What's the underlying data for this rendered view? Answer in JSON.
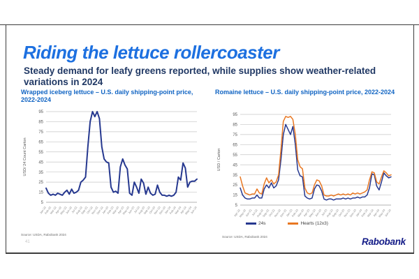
{
  "slide": {
    "title": "Riding the lettuce rollercoaster",
    "subtitle": "Steady demand for leafy greens reported, while supplies show weather-related variations in 2024",
    "brand": "Rabobank",
    "page_number": "41"
  },
  "colors": {
    "title_blue": "#1d70e0",
    "subtitle_navy": "#203864",
    "chart_title_blue": "#1064c3",
    "navy_line": "#26388f",
    "orange_line": "#e87722",
    "grid_gray": "#c6c6c6",
    "brand_blue": "#131b87"
  },
  "chart_data": [
    {
      "type": "line",
      "title": "Wrapped iceberg lettuce – U.S. daily shipping-point price, 2022-2024",
      "ylabel": "USD/ 24 Count Carton",
      "source": "Source: USDA, Rabobank 2024",
      "ylim": [
        5,
        95
      ],
      "yticks": [
        5,
        15,
        25,
        35,
        45,
        55,
        65,
        75,
        85,
        95
      ],
      "grid": true,
      "legend_position": "none",
      "x_labels": [
        "Jan-22",
        "Feb-22",
        "Mar-22",
        "Apr-22",
        "May-22",
        "Jun-22",
        "Jul-22",
        "Aug-22",
        "Sep-22",
        "Oct-22",
        "Nov-22",
        "Dec-22",
        "Jan-23",
        "Feb-23",
        "Mar-23",
        "Apr-23",
        "May-23",
        "Jun-23",
        "Jul-23",
        "Aug-23",
        "Sep-23",
        "Oct-23",
        "Nov-23",
        "Dec-23",
        "Jan-24",
        "Feb-24",
        "Mar-24",
        "Apr-24",
        "May-24",
        "Jun-24"
      ],
      "series": [
        {
          "name": "Wrapped iceberg lettuce",
          "color": "#26388f",
          "values": [
            19,
            14,
            12,
            13,
            12,
            14,
            13,
            12,
            15,
            17,
            13,
            18,
            14,
            15,
            17,
            25,
            27,
            30,
            60,
            85,
            95,
            90,
            95,
            88,
            60,
            48,
            45,
            44,
            20,
            15,
            16,
            14,
            40,
            48,
            42,
            38,
            14,
            12,
            25,
            20,
            14,
            28,
            24,
            13,
            20,
            14,
            12,
            13,
            22,
            15,
            12,
            12,
            11,
            12,
            11,
            12,
            15,
            30,
            27,
            44,
            39,
            20,
            25,
            26,
            26,
            28
          ]
        }
      ]
    },
    {
      "type": "line",
      "title": "Romaine lettuce – U.S. daily shipping-point price, 2022-2024",
      "ylabel": "USD / Carton",
      "source": "Source: USDA, Rabobank 2024",
      "ylim": [
        5,
        95
      ],
      "yticks": [
        5,
        15,
        25,
        35,
        45,
        55,
        65,
        75,
        85,
        95
      ],
      "grid": true,
      "legend_position": "bottom",
      "x_labels": [
        "Apr-22",
        "May-22",
        "Jun-22",
        "Jul-22",
        "Aug-22",
        "Sep-22",
        "Oct-22",
        "Nov-22",
        "Dec-22",
        "Jan-23",
        "Feb-23",
        "Mar-23",
        "Apr-23",
        "May-23",
        "Jun-23",
        "Jul-23",
        "Aug-23",
        "Sep-23",
        "Oct-23",
        "Nov-23",
        "Dec-23",
        "Jan-24",
        "Feb-24",
        "Mar-24",
        "Apr-24",
        "May-24",
        "Jun-24"
      ],
      "series": [
        {
          "name": "24s",
          "color": "#26388f",
          "values": [
            22,
            15,
            12,
            11,
            11,
            12,
            12,
            15,
            12,
            12,
            21,
            25,
            22,
            27,
            22,
            24,
            30,
            50,
            75,
            85,
            80,
            75,
            83,
            65,
            40,
            34,
            33,
            14,
            12,
            11,
            12,
            21,
            25,
            24,
            19,
            11,
            10,
            11,
            11,
            10,
            11,
            11,
            11,
            12,
            11,
            12,
            11,
            12,
            12,
            13,
            12,
            13,
            13,
            15,
            22,
            36,
            35,
            24,
            20,
            28,
            37,
            34,
            32,
            33
          ]
        },
        {
          "name": "Hearts (12x3)",
          "color": "#e87722",
          "values": [
            33,
            24,
            17,
            16,
            15,
            16,
            16,
            21,
            17,
            16,
            26,
            32,
            27,
            30,
            26,
            28,
            35,
            60,
            88,
            93,
            92,
            93,
            90,
            75,
            50,
            43,
            41,
            22,
            17,
            16,
            17,
            25,
            30,
            29,
            24,
            15,
            14,
            14,
            15,
            14,
            15,
            16,
            15,
            16,
            15,
            16,
            15,
            17,
            16,
            17,
            16,
            17,
            18,
            20,
            30,
            38,
            37,
            28,
            26,
            33,
            39,
            37,
            34,
            35
          ]
        }
      ]
    }
  ]
}
